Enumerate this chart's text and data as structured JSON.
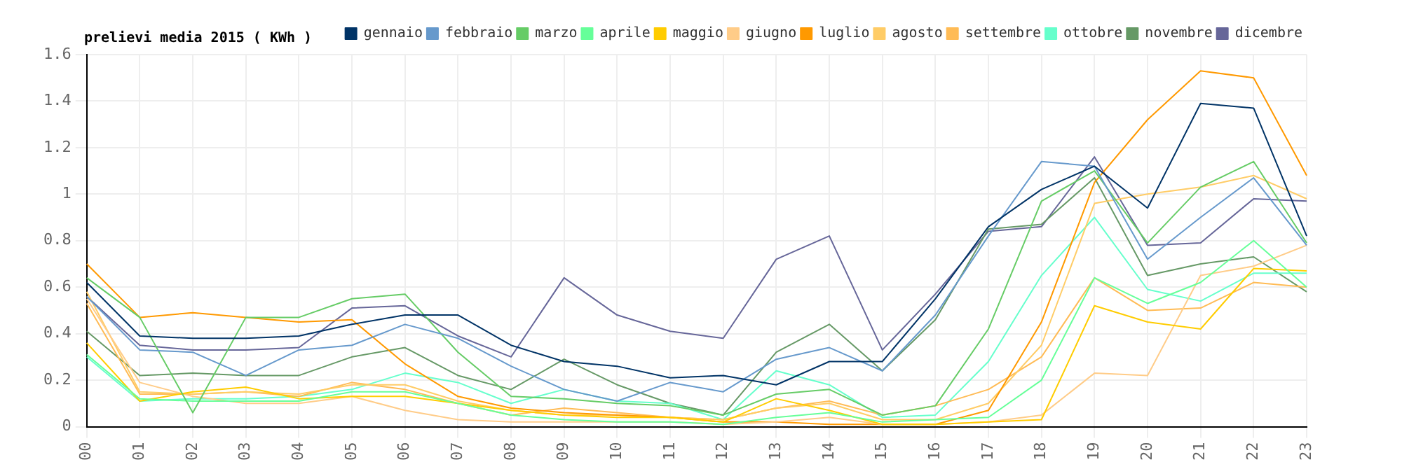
{
  "chart_data": {
    "type": "line",
    "title": "prelievi media 2015 ( KWh )",
    "categories": [
      "00",
      "01",
      "02",
      "03",
      "04",
      "05",
      "06",
      "07",
      "08",
      "09",
      "10",
      "11",
      "12",
      "13",
      "14",
      "15",
      "16",
      "17",
      "18",
      "19",
      "20",
      "21",
      "22",
      "23"
    ],
    "ylim": [
      0,
      1.6
    ],
    "yticks": [
      0,
      0.2,
      0.4,
      0.6,
      0.8,
      1,
      1.2,
      1.4,
      1.6
    ],
    "grid": true,
    "legend": "top right",
    "marker": "none",
    "line_style": "solid",
    "series": [
      {
        "name": "gennaio",
        "color": "#003366",
        "values": [
          0.62,
          0.39,
          0.38,
          0.38,
          0.39,
          0.44,
          0.48,
          0.48,
          0.35,
          0.28,
          0.26,
          0.21,
          0.22,
          0.18,
          0.28,
          0.28,
          0.55,
          0.86,
          1.02,
          1.12,
          0.94,
          1.39,
          1.37,
          0.82
        ]
      },
      {
        "name": "febbraio",
        "color": "#6699cc",
        "values": [
          0.56,
          0.33,
          0.32,
          0.22,
          0.33,
          0.35,
          0.44,
          0.38,
          0.26,
          0.16,
          0.11,
          0.19,
          0.15,
          0.29,
          0.34,
          0.24,
          0.48,
          0.82,
          1.14,
          1.12,
          0.72,
          0.9,
          1.07,
          0.78
        ]
      },
      {
        "name": "marzo",
        "color": "#66cc66",
        "values": [
          0.64,
          0.47,
          0.06,
          0.47,
          0.47,
          0.55,
          0.57,
          0.32,
          0.13,
          0.12,
          0.1,
          0.09,
          0.05,
          0.14,
          0.16,
          0.05,
          0.09,
          0.42,
          0.97,
          1.1,
          0.79,
          1.03,
          1.14,
          0.79
        ]
      },
      {
        "name": "aprile",
        "color": "#66ff99",
        "values": [
          0.31,
          0.12,
          0.11,
          0.11,
          0.11,
          0.15,
          0.15,
          0.1,
          0.05,
          0.03,
          0.02,
          0.02,
          0.01,
          0.04,
          0.06,
          0.02,
          0.03,
          0.04,
          0.2,
          0.64,
          0.53,
          0.62,
          0.8,
          0.6
        ]
      },
      {
        "name": "maggio",
        "color": "#ffcc00",
        "values": [
          0.36,
          0.11,
          0.15,
          0.17,
          0.12,
          0.13,
          0.13,
          0.1,
          0.07,
          0.05,
          0.04,
          0.04,
          0.02,
          0.12,
          0.07,
          0.01,
          0.01,
          0.02,
          0.03,
          0.52,
          0.45,
          0.42,
          0.68,
          0.67
        ]
      },
      {
        "name": "giugno",
        "color": "#ffcc88",
        "values": [
          0.55,
          0.19,
          0.13,
          0.1,
          0.1,
          0.13,
          0.07,
          0.03,
          0.02,
          0.02,
          0.02,
          0.02,
          0.01,
          0.02,
          0.04,
          0.01,
          0.01,
          0.02,
          0.05,
          0.23,
          0.22,
          0.65,
          0.69,
          0.78
        ]
      },
      {
        "name": "luglio",
        "color": "#ff9900",
        "values": [
          0.7,
          0.47,
          0.49,
          0.47,
          0.45,
          0.46,
          0.27,
          0.13,
          0.08,
          0.06,
          0.05,
          0.04,
          0.02,
          0.02,
          0.01,
          0.01,
          0.01,
          0.07,
          0.45,
          1.05,
          1.32,
          1.53,
          1.5,
          1.08
        ]
      },
      {
        "name": "agosto",
        "color": "#ffcc66",
        "values": [
          0.58,
          0.15,
          0.14,
          0.15,
          0.14,
          0.18,
          0.18,
          0.11,
          0.07,
          0.05,
          0.05,
          0.04,
          0.03,
          0.08,
          0.1,
          0.03,
          0.03,
          0.1,
          0.35,
          0.96,
          1,
          1.03,
          1.08,
          0.98
        ]
      },
      {
        "name": "settembre",
        "color": "#ffbb55",
        "values": [
          0.53,
          0.14,
          0.14,
          0.15,
          0.13,
          0.19,
          0.16,
          0.1,
          0.05,
          0.08,
          0.06,
          0.04,
          0.03,
          0.08,
          0.11,
          0.05,
          0.09,
          0.16,
          0.3,
          0.64,
          0.5,
          0.51,
          0.62,
          0.6
        ]
      },
      {
        "name": "ottobre",
        "color": "#66ffcc",
        "values": [
          0.3,
          0.11,
          0.12,
          0.12,
          0.13,
          0.16,
          0.23,
          0.19,
          0.1,
          0.16,
          0.11,
          0.1,
          0.03,
          0.24,
          0.18,
          0.04,
          0.05,
          0.28,
          0.65,
          0.9,
          0.59,
          0.54,
          0.66,
          0.66
        ]
      },
      {
        "name": "novembre",
        "color": "#669966",
        "values": [
          0.41,
          0.22,
          0.23,
          0.22,
          0.22,
          0.3,
          0.34,
          0.22,
          0.16,
          0.29,
          0.18,
          0.1,
          0.05,
          0.32,
          0.44,
          0.24,
          0.46,
          0.85,
          0.87,
          1.07,
          0.65,
          0.7,
          0.73,
          0.58
        ]
      },
      {
        "name": "dicembre",
        "color": "#666699",
        "values": [
          0.56,
          0.35,
          0.33,
          0.33,
          0.34,
          0.51,
          0.52,
          0.39,
          0.3,
          0.64,
          0.48,
          0.41,
          0.38,
          0.72,
          0.82,
          0.33,
          0.57,
          0.84,
          0.86,
          1.16,
          0.78,
          0.79,
          0.98,
          0.97
        ]
      }
    ]
  }
}
